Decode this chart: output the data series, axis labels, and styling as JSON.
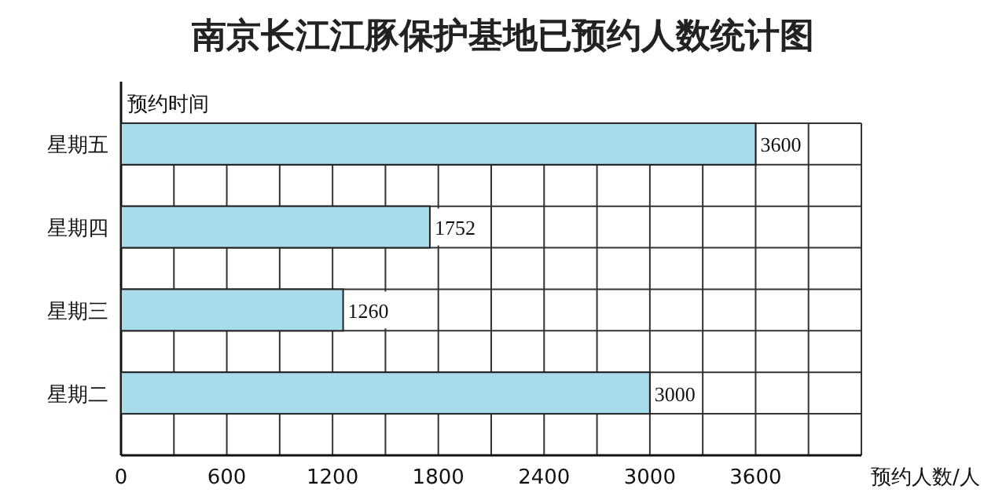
{
  "chart_data": {
    "type": "bar",
    "orientation": "horizontal",
    "title": "南京长江江豚保护基地已预约人数统计图",
    "xlabel": "预约人数/人",
    "ylabel": "预约时间",
    "categories": [
      "星期五",
      "星期四",
      "星期三",
      "星期二"
    ],
    "values": [
      3600,
      1752,
      1260,
      3000
    ],
    "color": "#a8dcea",
    "data_labels": true,
    "grid": true,
    "xlim": [
      0,
      4200
    ],
    "xticks": [
      0,
      {
        "value": 300,
        "label": null
      },
      600,
      {
        "value": 900,
        "label": null
      },
      1200,
      {
        "value": 1500,
        "label": null
      },
      1800,
      {
        "value": 2100,
        "label": null
      },
      2400,
      {
        "value": 2700,
        "label": null
      },
      3000,
      {
        "value": 3300,
        "label": null
      },
      3600,
      {
        "value": 3900,
        "label": null
      },
      {
        "value": 4200,
        "label": null
      }
    ]
  }
}
